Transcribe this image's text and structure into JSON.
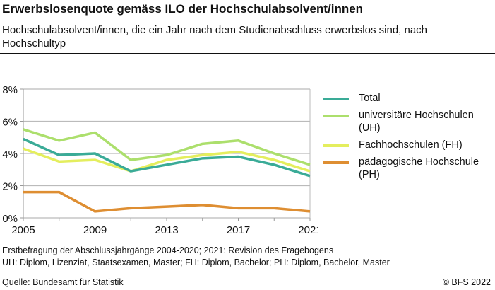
{
  "title": "Erwerbslosenquote gemäss ILO der Hochschulabsolvent/innen",
  "subtitle": "Hochschulabsolvent/innen, die ein Jahr nach dem Studienabschluss erwerbslos sind, nach Hochschultyp",
  "notes": [
    "Erstbefragung der Abschlussjahrgänge 2004-2020; 2021: Revision des Fragebogens",
    "UH: Diplom, Lizenziat, Staatsexamen, Master; FH: Diplom, Bachelor; PH: Diplom, Bachelor, Master"
  ],
  "source": "Quelle: Bundesamt für Statistik",
  "copyright": "© BFS 2022",
  "chart_data": {
    "type": "line",
    "x": [
      2005,
      2007,
      2009,
      2011,
      2013,
      2015,
      2017,
      2019,
      2021
    ],
    "xticks": [
      "2005",
      "2009",
      "2013",
      "2017",
      "2021"
    ],
    "yticks": [
      "0%",
      "2%",
      "4%",
      "6%",
      "8%"
    ],
    "ylim": [
      0,
      8
    ],
    "xlim": [
      2005,
      2021
    ],
    "grid": true,
    "legend": "right",
    "series": [
      {
        "name": "Total",
        "color": "#3aab97",
        "values": [
          4.9,
          3.9,
          4.0,
          2.9,
          3.3,
          3.7,
          3.8,
          3.3,
          2.6
        ]
      },
      {
        "name": "universitäre Hochschulen (UH)",
        "color": "#acdf6c",
        "values": [
          5.5,
          4.8,
          5.3,
          3.6,
          3.9,
          4.6,
          4.8,
          4.0,
          3.3
        ]
      },
      {
        "name": "Fachhochschulen (FH)",
        "color": "#e4ee5e",
        "values": [
          4.3,
          3.5,
          3.6,
          2.9,
          3.6,
          3.9,
          4.1,
          3.6,
          2.9
        ]
      },
      {
        "name": "pädagogische Hochschule (PH)",
        "color": "#de8e32",
        "values": [
          1.6,
          1.6,
          0.4,
          0.6,
          0.7,
          0.8,
          0.6,
          0.6,
          0.4
        ]
      }
    ]
  }
}
